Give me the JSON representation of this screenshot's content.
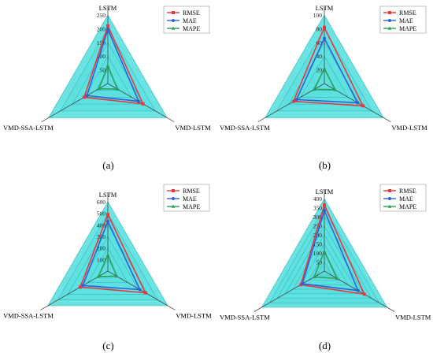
{
  "chart_data": [
    {
      "type": "radar",
      "caption": "(a)",
      "categories": [
        "LSTM",
        "VMD-LSTM",
        "VMD-SSA-LSTM"
      ],
      "ticks": [
        50,
        100,
        150,
        200,
        250
      ],
      "rmax": 250,
      "series": [
        {
          "name": "RMSE",
          "values": [
            210,
            148,
            100
          ]
        },
        {
          "name": "MAE",
          "values": [
            197,
            130,
            88
          ]
        },
        {
          "name": "MAPE",
          "values": [
            65,
            40,
            38
          ]
        }
      ],
      "legend": "top-right"
    },
    {
      "type": "radar",
      "caption": "(b)",
      "categories": [
        "LSTM",
        "VMD-LSTM",
        "VMD-SSA-LSTM"
      ],
      "ticks": [
        20,
        40,
        60,
        80,
        100
      ],
      "rmax": 100,
      "series": [
        {
          "name": "RMSE",
          "values": [
            82,
            65,
            52
          ]
        },
        {
          "name": "MAE",
          "values": [
            66,
            56,
            47
          ]
        },
        {
          "name": "MAPE",
          "values": [
            22,
            18,
            17
          ]
        }
      ],
      "legend": "top-right"
    },
    {
      "type": "radar",
      "caption": "(c)",
      "categories": [
        "LSTM",
        "VMD-LSTM",
        "VMD-SSA-LSTM"
      ],
      "ticks": [
        100,
        200,
        300,
        400,
        500,
        600
      ],
      "rmax": 600,
      "series": [
        {
          "name": "RMSE",
          "values": [
            490,
            375,
            275
          ]
        },
        {
          "name": "MAE",
          "values": [
            430,
            320,
            250
          ]
        },
        {
          "name": "MAPE",
          "values": [
            140,
            90,
            95
          ]
        }
      ],
      "legend": "top-right"
    },
    {
      "type": "radar",
      "caption": "(d)",
      "categories": [
        "LSTM",
        "VMD-LSTM",
        "VMD-SSA-LSTM"
      ],
      "ticks": [
        50,
        100,
        150,
        200,
        250,
        300,
        350,
        400
      ],
      "rmax": 400,
      "series": [
        {
          "name": "RMSE",
          "values": [
            365,
            255,
            150
          ]
        },
        {
          "name": "MAE",
          "values": [
            335,
            215,
            140
          ]
        },
        {
          "name": "MAPE",
          "values": [
            110,
            80,
            65
          ]
        }
      ],
      "legend": "top-right"
    }
  ],
  "colors": {
    "RMSE": "#e8383d",
    "MAE": "#2b62d9",
    "MAPE": "#2ca05a",
    "fill": "#5ce0e0",
    "grid": "#3ab8b8",
    "axis": "#444444"
  }
}
